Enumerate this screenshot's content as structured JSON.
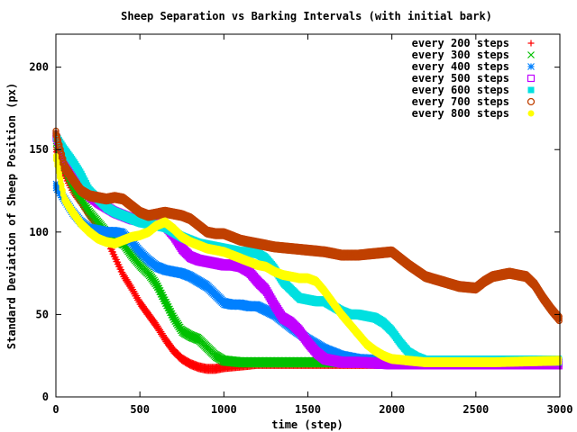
{
  "chart_data": {
    "type": "scatter",
    "title": "Sheep Separation vs Barking Intervals (with initial bark)",
    "xlabel": "time (step)",
    "ylabel": "Standard Deviation of Sheep Position (px)",
    "xlim": [
      0,
      3000
    ],
    "ylim": [
      0,
      220
    ],
    "xticks": [
      0,
      500,
      1000,
      1500,
      2000,
      2500,
      3000
    ],
    "yticks": [
      0,
      50,
      100,
      150,
      200
    ],
    "xtick_labels": [
      "0",
      "500",
      "1000",
      "1500",
      "2000",
      "2500",
      "3000"
    ],
    "ytick_labels": [
      "0",
      "50",
      "100",
      "150",
      "200"
    ],
    "grid": false,
    "legend_position": "top-right",
    "series": [
      {
        "name": "every 200 steps",
        "color": "#ff0000",
        "marker": "plus",
        "x": [
          0,
          50,
          100,
          150,
          200,
          250,
          300,
          350,
          400,
          450,
          500,
          550,
          600,
          650,
          700,
          750,
          800,
          850,
          900,
          950,
          1000,
          1100,
          1200,
          1400,
          1600,
          2000,
          2500,
          3000
        ],
        "y": [
          150,
          135,
          125,
          118,
          110,
          104,
          96,
          85,
          74,
          66,
          57,
          50,
          43,
          35,
          28,
          23,
          20,
          18,
          17,
          17,
          18,
          19,
          20,
          20,
          20,
          20,
          20,
          21
        ]
      },
      {
        "name": "every 300 steps",
        "color": "#00c000",
        "marker": "cross",
        "x": [
          0,
          50,
          100,
          150,
          200,
          250,
          300,
          350,
          400,
          450,
          500,
          550,
          600,
          650,
          700,
          750,
          800,
          850,
          900,
          950,
          1000,
          1100,
          1200,
          1500,
          2000,
          2500,
          3000
        ],
        "y": [
          155,
          140,
          128,
          120,
          112,
          106,
          100,
          95,
          93,
          86,
          80,
          75,
          68,
          58,
          48,
          40,
          37,
          35,
          30,
          25,
          22,
          21,
          21,
          21,
          21,
          21,
          21
        ]
      },
      {
        "name": "every 400 steps",
        "color": "#0080ff",
        "marker": "star",
        "x": [
          0,
          50,
          100,
          150,
          200,
          250,
          300,
          350,
          400,
          450,
          500,
          550,
          600,
          650,
          700,
          750,
          800,
          850,
          900,
          950,
          1000,
          1050,
          1100,
          1150,
          1200,
          1300,
          1400,
          1500,
          1600,
          1700,
          1800,
          2000,
          2500,
          3000
        ],
        "y": [
          128,
          120,
          112,
          106,
          102,
          101,
          100,
          100,
          99,
          94,
          88,
          83,
          79,
          77,
          76,
          75,
          73,
          70,
          67,
          62,
          57,
          56,
          56,
          55,
          55,
          50,
          42,
          35,
          29,
          25,
          23,
          22,
          21,
          21
        ]
      },
      {
        "name": "every 500 steps",
        "color": "#c000ff",
        "marker": "square",
        "x": [
          0,
          50,
          100,
          150,
          200,
          250,
          300,
          350,
          400,
          450,
          500,
          550,
          600,
          650,
          700,
          750,
          800,
          850,
          900,
          950,
          1000,
          1050,
          1100,
          1150,
          1200,
          1250,
          1300,
          1350,
          1400,
          1450,
          1500,
          1550,
          1600,
          1650,
          1700,
          1800,
          2000,
          2500,
          3000
        ],
        "y": [
          158,
          145,
          135,
          128,
          122,
          118,
          115,
          112,
          110,
          108,
          107,
          106,
          105,
          104,
          98,
          90,
          85,
          83,
          82,
          81,
          80,
          80,
          79,
          76,
          70,
          65,
          56,
          48,
          45,
          40,
          33,
          27,
          23,
          22,
          21,
          21,
          20,
          20,
          20
        ]
      },
      {
        "name": "every 600 steps",
        "color": "#00e0e0",
        "marker": "filled-square",
        "x": [
          0,
          50,
          100,
          150,
          200,
          250,
          300,
          350,
          400,
          450,
          500,
          550,
          600,
          650,
          700,
          750,
          800,
          850,
          900,
          950,
          1000,
          1050,
          1100,
          1150,
          1200,
          1250,
          1300,
          1350,
          1400,
          1450,
          1500,
          1550,
          1600,
          1650,
          1700,
          1750,
          1800,
          1850,
          1900,
          1950,
          2000,
          2050,
          2100,
          2150,
          2200,
          2300,
          2500,
          3000
        ],
        "y": [
          158,
          150,
          143,
          135,
          125,
          120,
          115,
          112,
          110,
          108,
          106,
          105,
          104,
          103,
          100,
          97,
          95,
          93,
          92,
          91,
          90,
          89,
          88,
          88,
          87,
          84,
          78,
          70,
          65,
          60,
          59,
          58,
          58,
          55,
          52,
          50,
          50,
          49,
          48,
          45,
          40,
          33,
          27,
          24,
          22,
          22,
          22,
          22
        ]
      },
      {
        "name": "every 700 steps",
        "color": "#c04000",
        "marker": "circle",
        "x": [
          0,
          50,
          100,
          150,
          200,
          250,
          300,
          350,
          400,
          450,
          500,
          550,
          600,
          650,
          700,
          750,
          800,
          850,
          900,
          950,
          1000,
          1100,
          1200,
          1300,
          1400,
          1500,
          1600,
          1700,
          1800,
          1900,
          2000,
          2050,
          2100,
          2200,
          2300,
          2400,
          2500,
          2550,
          2600,
          2650,
          2700,
          2750,
          2800,
          2850,
          2900,
          2950,
          3000
        ],
        "y": [
          160,
          140,
          132,
          125,
          122,
          121,
          120,
          121,
          120,
          116,
          112,
          110,
          111,
          112,
          111,
          110,
          108,
          104,
          100,
          99,
          99,
          95,
          93,
          91,
          90,
          89,
          88,
          86,
          86,
          87,
          88,
          84,
          80,
          73,
          70,
          67,
          66,
          70,
          73,
          74,
          75,
          74,
          73,
          68,
          60,
          53,
          47
        ]
      },
      {
        "name": "every 800 steps",
        "color": "#ffff00",
        "marker": "filled-circle",
        "x": [
          0,
          50,
          100,
          150,
          200,
          250,
          300,
          350,
          400,
          450,
          500,
          550,
          600,
          650,
          700,
          750,
          800,
          850,
          900,
          950,
          1000,
          1050,
          1100,
          1150,
          1200,
          1250,
          1300,
          1350,
          1400,
          1450,
          1500,
          1550,
          1600,
          1650,
          1700,
          1750,
          1800,
          1850,
          1900,
          1950,
          2000,
          2100,
          2200,
          2400,
          2600,
          3000
        ],
        "y": [
          145,
          120,
          112,
          105,
          100,
          96,
          94,
          93,
          95,
          97,
          98,
          100,
          104,
          106,
          102,
          97,
          94,
          92,
          90,
          89,
          88,
          86,
          84,
          82,
          80,
          79,
          76,
          74,
          73,
          72,
          72,
          70,
          64,
          57,
          50,
          44,
          38,
          32,
          28,
          25,
          23,
          22,
          21,
          21,
          21,
          22
        ]
      }
    ]
  }
}
